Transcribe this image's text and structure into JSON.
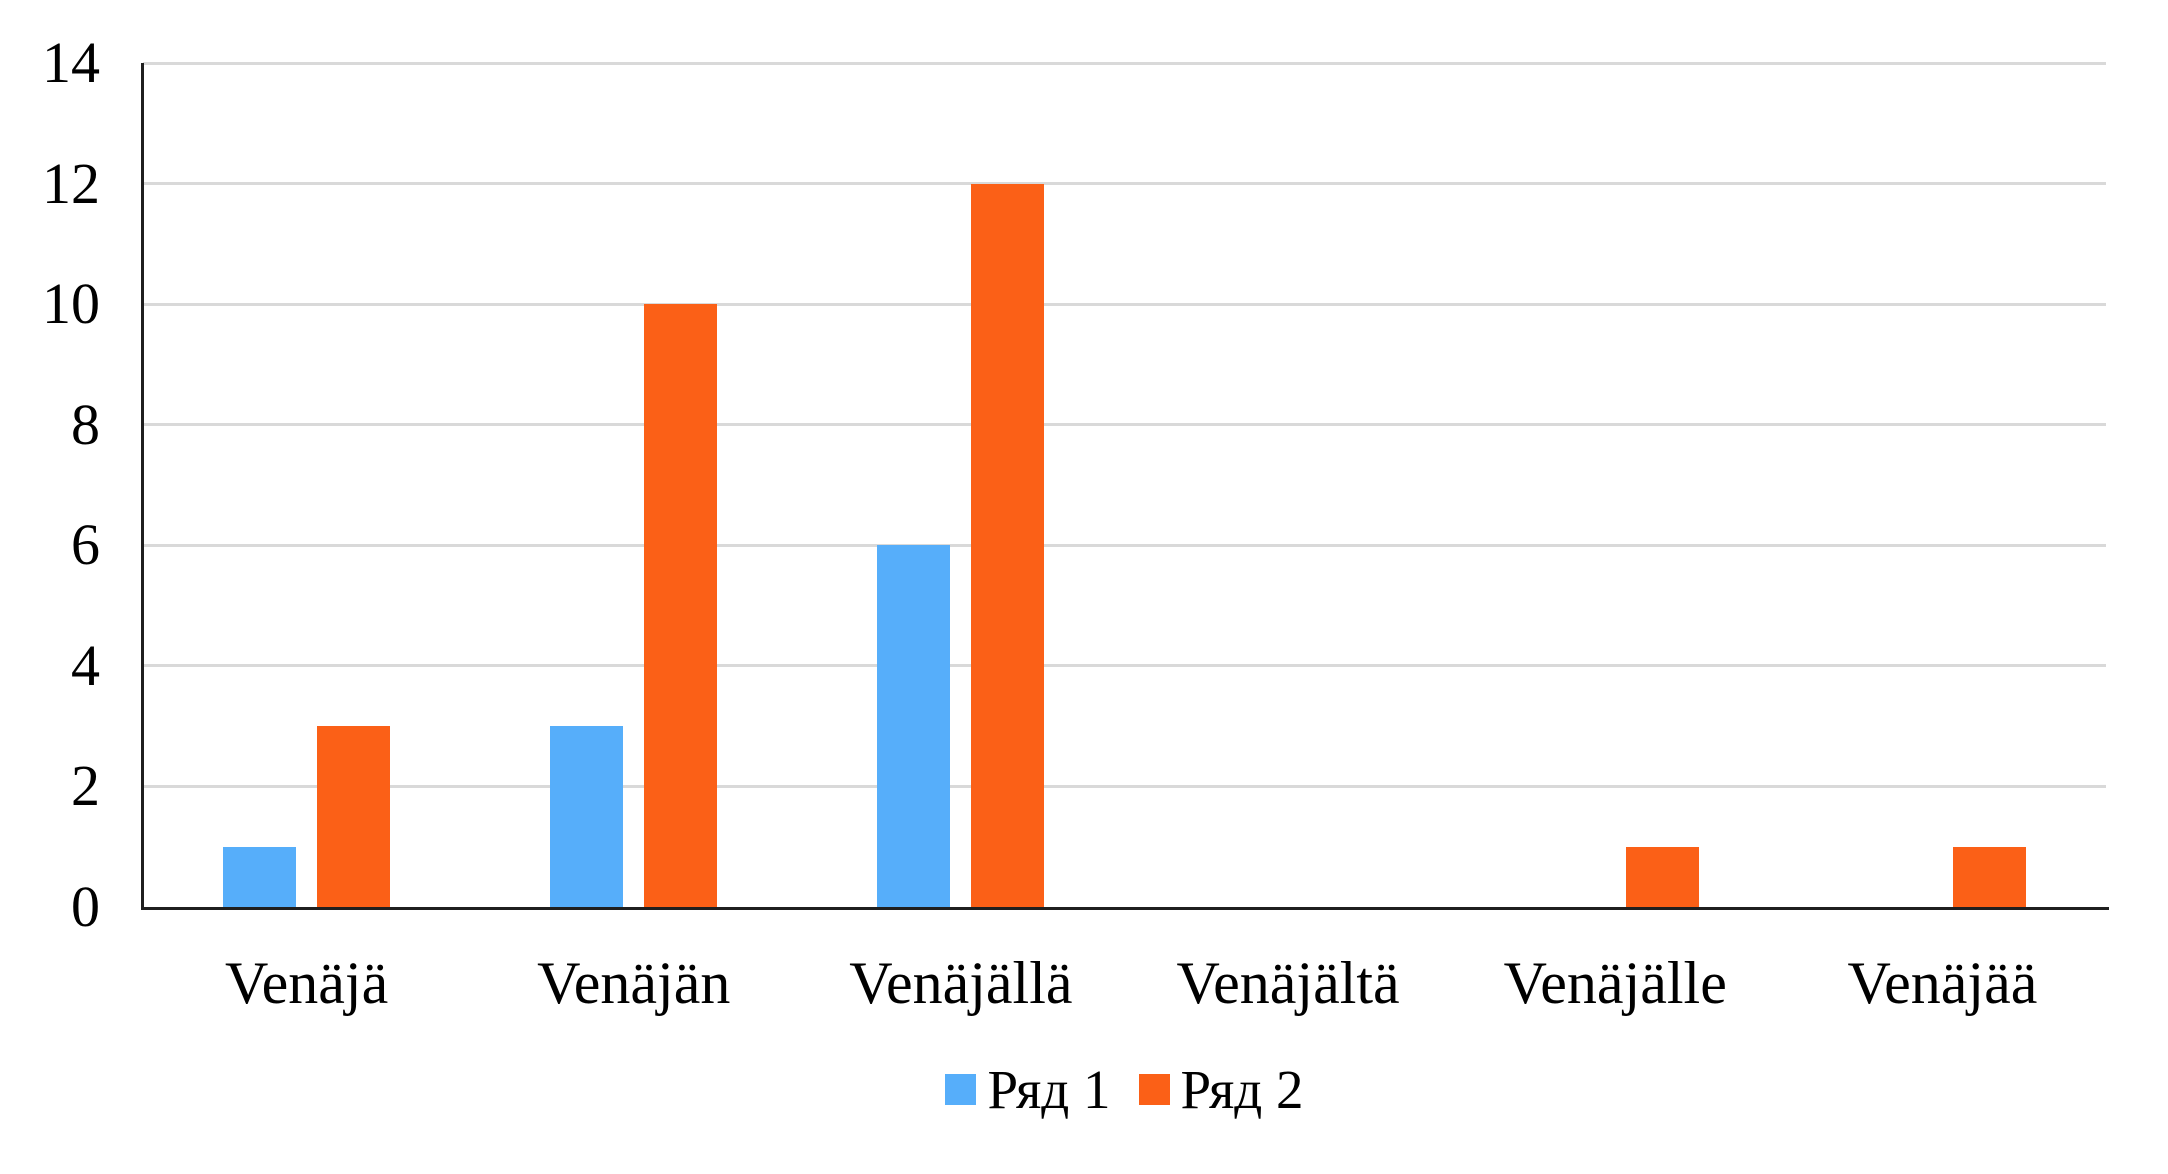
{
  "chart_data": {
    "type": "bar",
    "title": "",
    "xlabel": "",
    "ylabel": "",
    "categories": [
      "Venäjä",
      "Venäjän",
      "Venäjällä",
      "Venäjältä",
      "Venäjälle",
      "Venäjää"
    ],
    "series": [
      {
        "name": "Ряд 1",
        "color": "#56AEFA",
        "values": [
          1,
          3,
          6,
          0,
          0,
          0
        ]
      },
      {
        "name": "Ряд 2",
        "color": "#FB6017",
        "values": [
          3,
          10,
          12,
          0,
          1,
          1
        ]
      }
    ],
    "ylim": [
      0,
      14
    ],
    "yticks": [
      0,
      2,
      4,
      6,
      8,
      10,
      12,
      14
    ],
    "grid": true,
    "legend_position": "bottom",
    "gridline_color": "#D9D9D9",
    "axis_color": "#1F1F1F",
    "background_color": "#FFFFFF"
  }
}
